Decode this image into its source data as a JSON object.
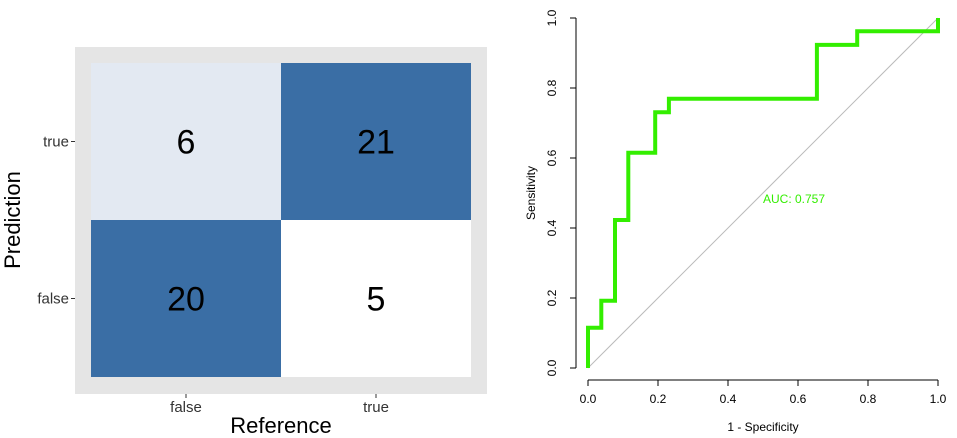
{
  "chart_data": [
    {
      "type": "heatmap",
      "xlabel": "Reference",
      "ylabel": "Prediction",
      "x_categories": [
        "false",
        "true"
      ],
      "y_categories": [
        "false",
        "true"
      ],
      "cells": [
        {
          "reference": "false",
          "prediction": "true",
          "value": 6,
          "color": "#e3e9f2"
        },
        {
          "reference": "true",
          "prediction": "true",
          "value": 21,
          "color": "#3a6ea5"
        },
        {
          "reference": "false",
          "prediction": "false",
          "value": 20,
          "color": "#3a6ea5"
        },
        {
          "reference": "true",
          "prediction": "false",
          "value": 5,
          "color": "#ffffff"
        }
      ],
      "panel_background": "#e5e5e5"
    },
    {
      "type": "line",
      "xlabel": "1 - Specificity",
      "ylabel": "Sensitivity",
      "xlim": [
        0,
        1
      ],
      "ylim": [
        0,
        1
      ],
      "xticks": [
        "0.0",
        "0.2",
        "0.4",
        "0.6",
        "0.8",
        "1.0"
      ],
      "yticks": [
        "0.0",
        "0.2",
        "0.4",
        "0.6",
        "0.8",
        "1.0"
      ],
      "annotation": "AUC: 0.757",
      "annotation_color": "#33ee00",
      "series": [
        {
          "color": "#33ee00",
          "x": [
            0,
            0,
            0.038,
            0.038,
            0.077,
            0.077,
            0.115,
            0.115,
            0.192,
            0.192,
            0.231,
            0.231,
            0.654,
            0.654,
            0.769,
            0.769,
            1,
            1
          ],
          "y": [
            0,
            0.115,
            0.115,
            0.192,
            0.192,
            0.423,
            0.423,
            0.615,
            0.615,
            0.731,
            0.731,
            0.769,
            0.769,
            0.923,
            0.923,
            0.962,
            0.962,
            1
          ]
        }
      ],
      "reference_line": {
        "x": [
          0,
          1
        ],
        "y": [
          0,
          1
        ],
        "color": "#bbbbbb"
      }
    }
  ]
}
